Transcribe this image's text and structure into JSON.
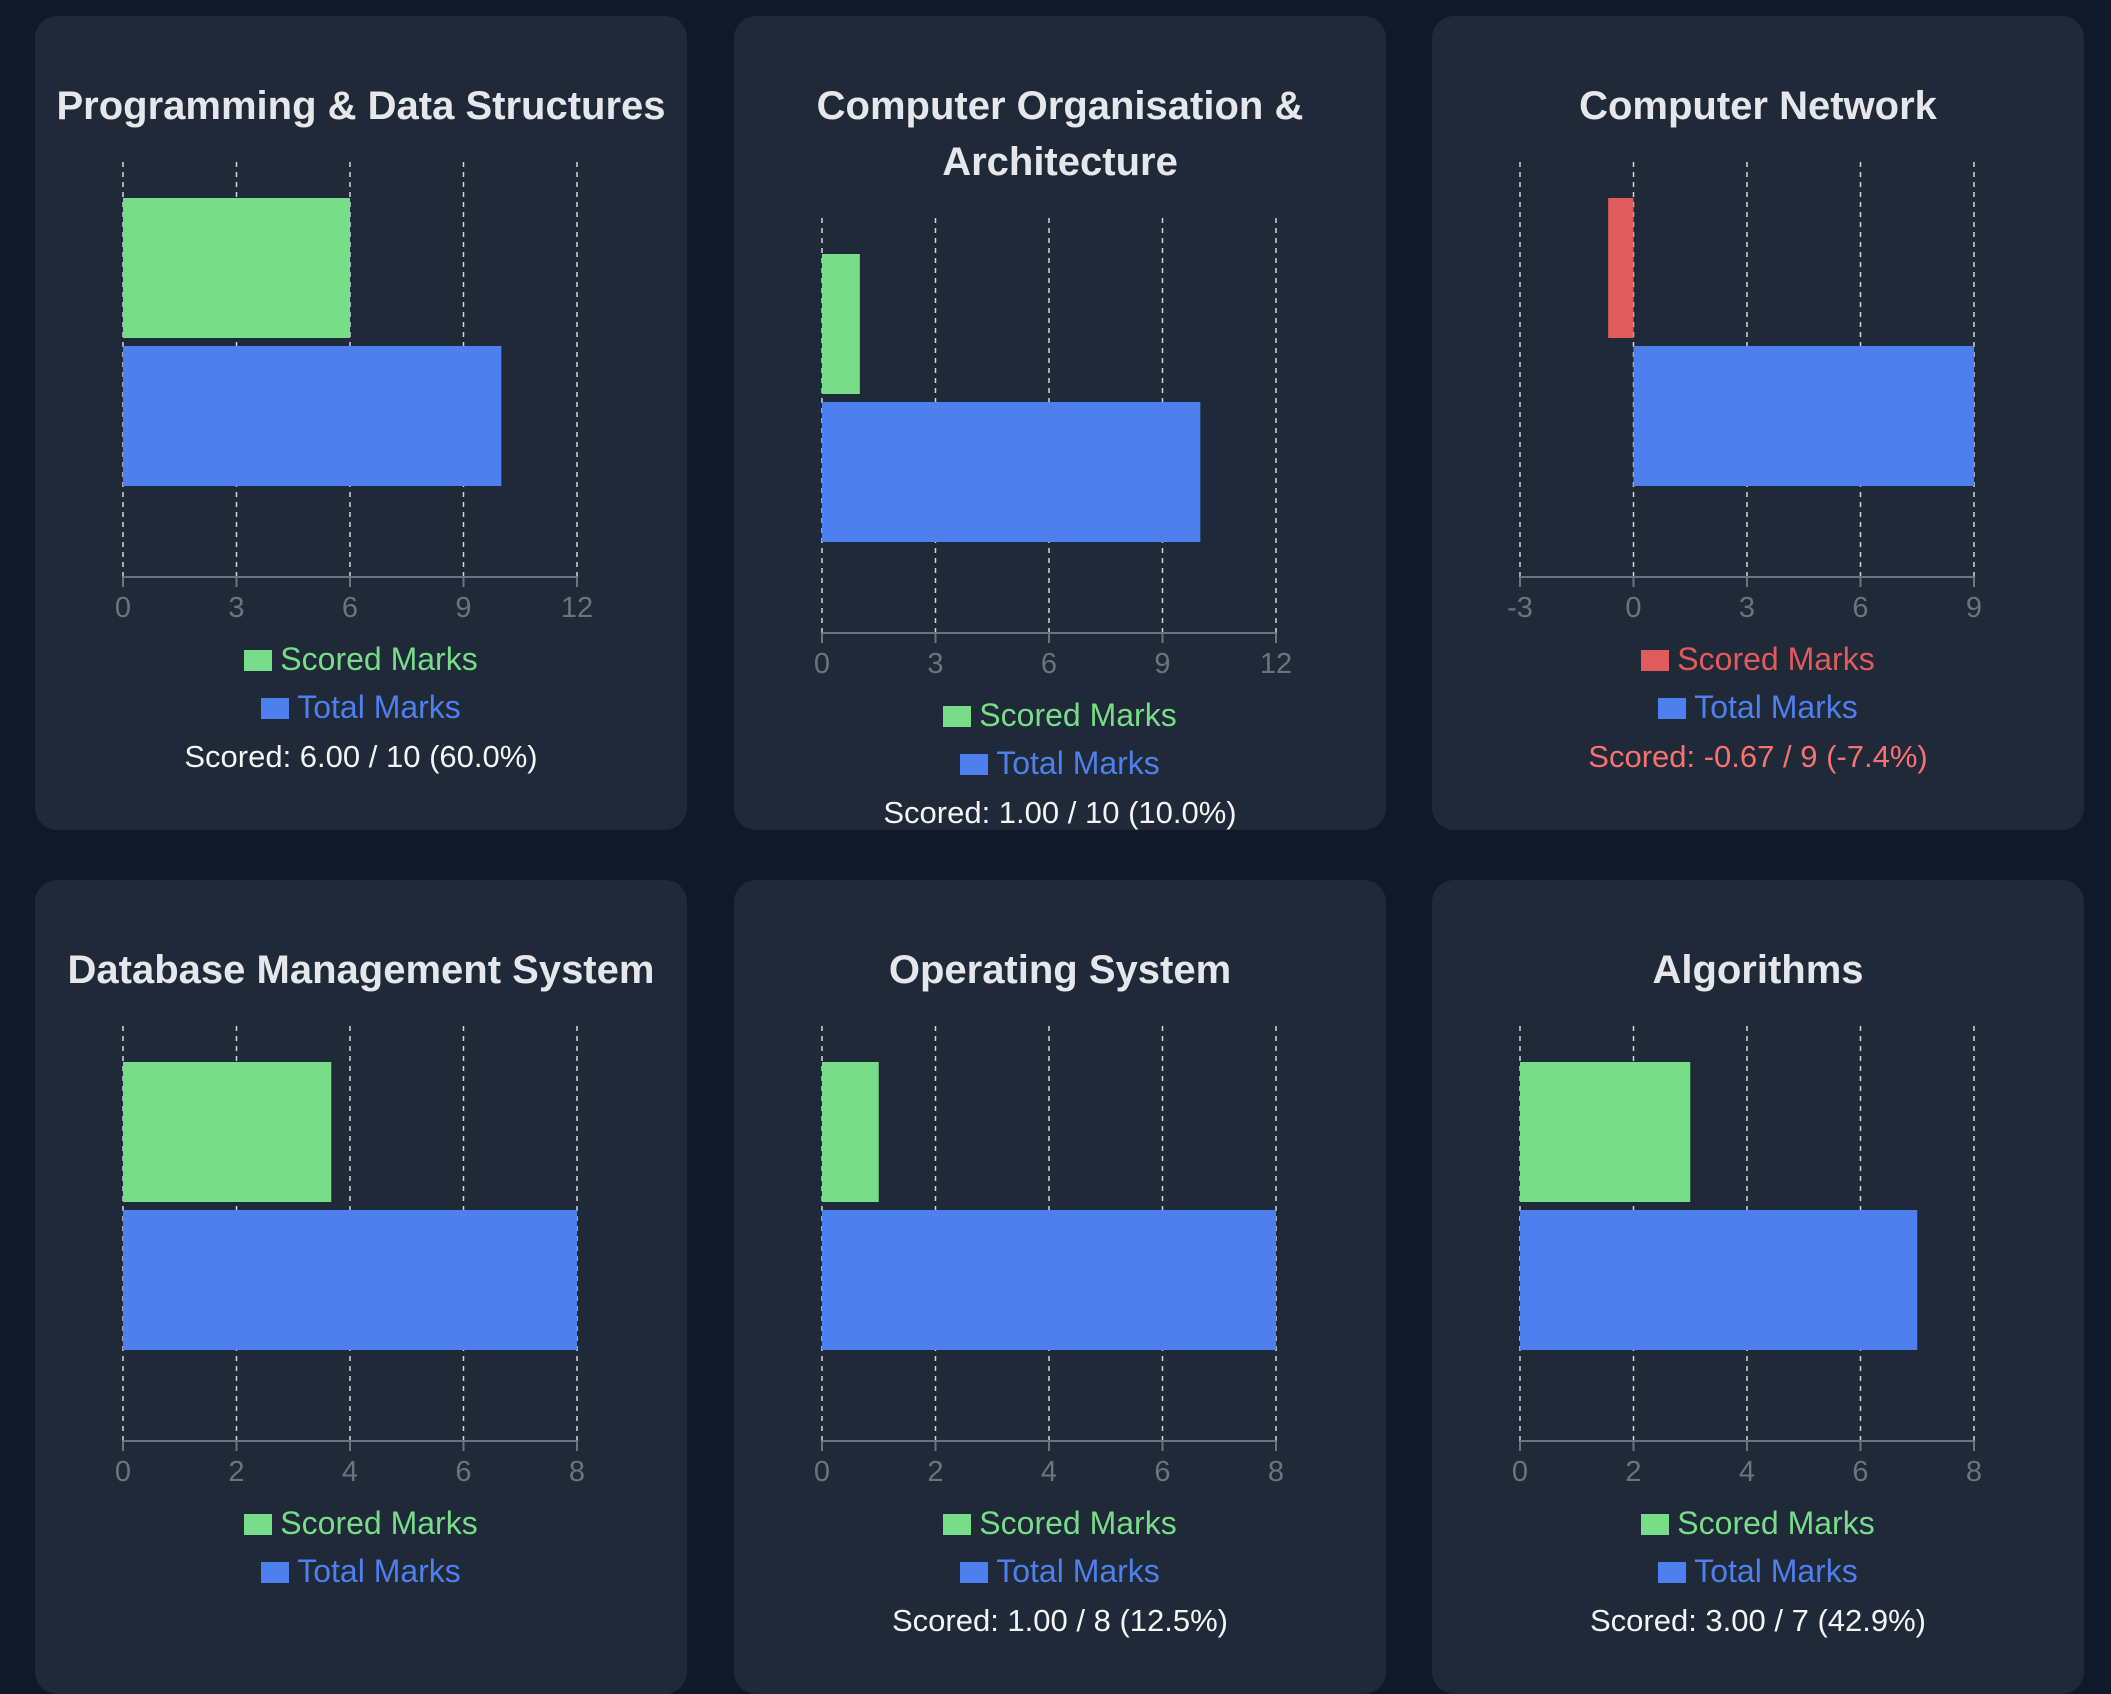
{
  "colors": {
    "scored_positive": "#77dd88",
    "scored_negative": "#e05b5b",
    "total": "#4d80ee",
    "score_text_positive": "#f3f4f6",
    "score_text_negative": "#f87171"
  },
  "legend": {
    "scored_label": "Scored Marks",
    "total_label": "Total Marks"
  },
  "chart_data": [
    {
      "type": "bar",
      "orientation": "horizontal",
      "title": "Programming & Data Structures",
      "series": [
        {
          "name": "Scored Marks",
          "values": [
            6
          ]
        },
        {
          "name": "Total Marks",
          "values": [
            10
          ]
        }
      ],
      "xlim": [
        0,
        12
      ],
      "xticks": [
        0,
        3,
        6,
        9,
        12
      ],
      "xtick_labels": [
        "0",
        "3",
        "6",
        "9",
        "12"
      ],
      "grid": true,
      "legend_placement": "bottom",
      "score_text": "Scored: 6.00 / 10 (60.0%)"
    },
    {
      "type": "bar",
      "orientation": "horizontal",
      "title": "Computer Organisation & Architecture",
      "series": [
        {
          "name": "Scored Marks",
          "values": [
            1
          ]
        },
        {
          "name": "Total Marks",
          "values": [
            10
          ]
        }
      ],
      "xlim": [
        0,
        12
      ],
      "xticks": [
        0,
        3,
        6,
        9,
        12
      ],
      "xtick_labels": [
        "0",
        "3",
        "6",
        "9",
        "12"
      ],
      "grid": true,
      "legend_placement": "bottom",
      "score_text": "Scored: 1.00 / 10 (10.0%)"
    },
    {
      "type": "bar",
      "orientation": "horizontal",
      "title": "Computer Network",
      "series": [
        {
          "name": "Scored Marks",
          "values": [
            -0.67
          ]
        },
        {
          "name": "Total Marks",
          "values": [
            9
          ]
        }
      ],
      "xlim": [
        -3,
        9
      ],
      "xticks": [
        -3,
        0,
        3,
        6,
        9
      ],
      "xtick_labels": [
        "-3",
        "0",
        "3",
        "6",
        "9"
      ],
      "grid": true,
      "legend_placement": "bottom",
      "score_text": "Scored: -0.67 / 9 (-7.4%)"
    },
    {
      "type": "bar",
      "orientation": "horizontal",
      "title": "Database Management System",
      "series": [
        {
          "name": "Scored Marks",
          "values": [
            3.67
          ]
        },
        {
          "name": "Total Marks",
          "values": [
            8
          ]
        }
      ],
      "xlim": [
        0,
        8
      ],
      "xticks": [
        0,
        2,
        4,
        6,
        8
      ],
      "xtick_labels": [
        "0",
        "2",
        "4",
        "6",
        "8"
      ],
      "grid": true,
      "legend_placement": "bottom",
      "score_text": ""
    },
    {
      "type": "bar",
      "orientation": "horizontal",
      "title": "Operating System",
      "series": [
        {
          "name": "Scored Marks",
          "values": [
            1
          ]
        },
        {
          "name": "Total Marks",
          "values": [
            8
          ]
        }
      ],
      "xlim": [
        0,
        8
      ],
      "xticks": [
        0,
        2,
        4,
        6,
        8
      ],
      "xtick_labels": [
        "0",
        "2",
        "4",
        "6",
        "8"
      ],
      "grid": true,
      "legend_placement": "bottom",
      "score_text": "Scored: 1.00 / 8 (12.5%)"
    },
    {
      "type": "bar",
      "orientation": "horizontal",
      "title": "Algorithms",
      "series": [
        {
          "name": "Scored Marks",
          "values": [
            3
          ]
        },
        {
          "name": "Total Marks",
          "values": [
            7
          ]
        }
      ],
      "xlim": [
        0,
        8
      ],
      "xticks": [
        0,
        2,
        4,
        6,
        8
      ],
      "xtick_labels": [
        "0",
        "2",
        "4",
        "6",
        "8"
      ],
      "grid": true,
      "legend_placement": "bottom",
      "score_text": "Scored: 3.00 / 7 (42.9%)"
    }
  ]
}
